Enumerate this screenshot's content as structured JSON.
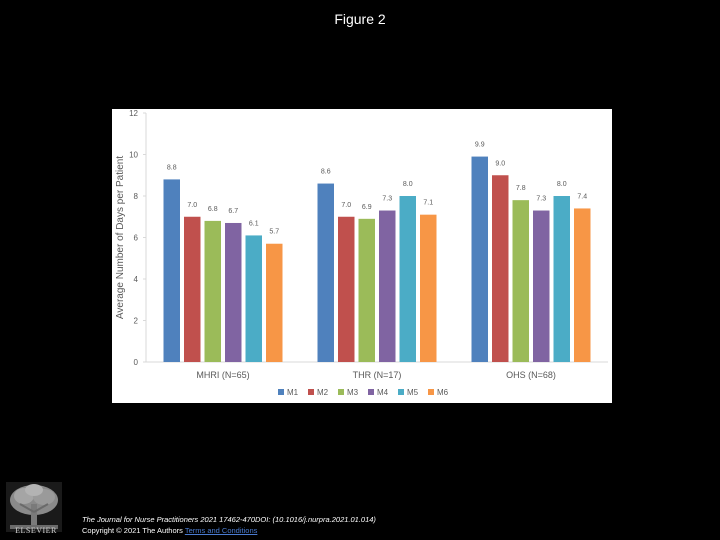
{
  "figure_title": "Figure 2",
  "footer": {
    "citation": "The Journal for Nurse Practitioners 2021 17462-470DOI: (10.1016/j.nurpra.2021.01.014)",
    "copyright": "Copyright © 2021 The Authors",
    "terms_link": "Terms and Conditions"
  },
  "publisher": {
    "name": "ELSEVIER",
    "logo_icon": "elsevier-tree-logo-icon"
  },
  "chart_data": {
    "type": "bar",
    "title": "",
    "xlabel": "",
    "ylabel": "Average Number of Days per Patient",
    "ylim": [
      0,
      12
    ],
    "yticks": [
      "0",
      "2",
      "4",
      "6",
      "8",
      "10",
      "12"
    ],
    "grid": false,
    "legend_position": "bottom",
    "categories": [
      "MHRI (N=65)",
      "THR (N=17)",
      "OHS (N=68)"
    ],
    "series": [
      {
        "name": "M1",
        "color": "#4f81bd",
        "values": [
          8.8,
          8.6,
          9.9
        ],
        "labels": [
          "8.8",
          "8.6",
          "9.9"
        ]
      },
      {
        "name": "M2",
        "color": "#c0504d",
        "values": [
          7.0,
          7.0,
          9.0
        ],
        "labels": [
          "7.0",
          "7.0",
          "9.0"
        ]
      },
      {
        "name": "M3",
        "color": "#9bbb59",
        "values": [
          6.8,
          6.9,
          7.8
        ],
        "labels": [
          "6.8",
          "6.9",
          "7.8"
        ]
      },
      {
        "name": "M4",
        "color": "#8064a2",
        "values": [
          6.7,
          7.3,
          7.3
        ],
        "labels": [
          "6.7",
          "7.3",
          "7.3"
        ]
      },
      {
        "name": "M5",
        "color": "#4bacc6",
        "values": [
          6.1,
          8.0,
          8.0
        ],
        "labels": [
          "6.1",
          "8.0",
          "8.0"
        ]
      },
      {
        "name": "M6",
        "color": "#f79646",
        "values": [
          5.7,
          7.1,
          7.4
        ],
        "labels": [
          "5.7",
          "7.1",
          "7.4"
        ]
      }
    ]
  }
}
